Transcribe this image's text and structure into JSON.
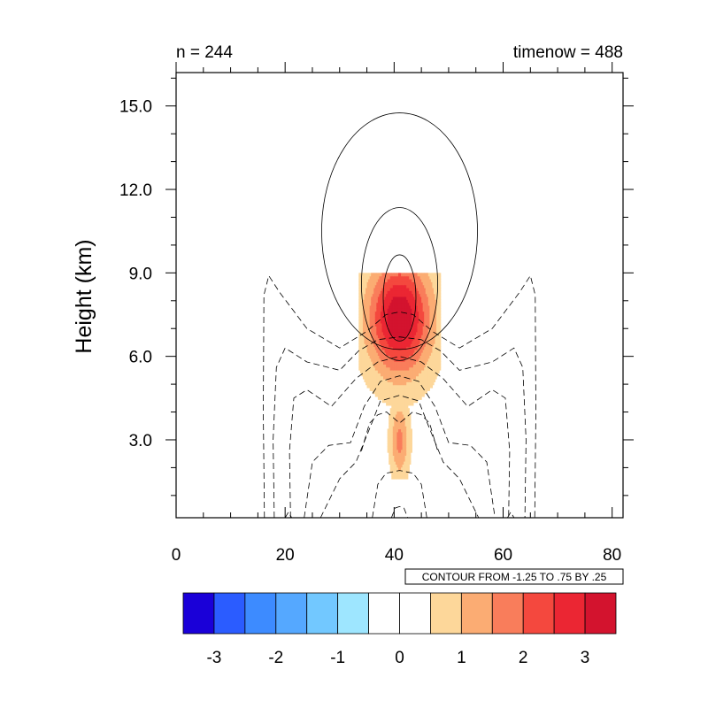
{
  "header": {
    "left_label": "n = 244",
    "right_label": "timenow = 488"
  },
  "contour_info": "CONTOUR FROM -1.25 TO .75 BY .25",
  "chart_data": {
    "type": "heatmap",
    "title": "",
    "xlabel": "",
    "ylabel": "Height (km)",
    "xlim": [
      0,
      82
    ],
    "ylim": [
      0.2,
      16.2
    ],
    "x_ticks": [
      0,
      20,
      40,
      60,
      80
    ],
    "x_tick_labels": [
      "0",
      "20",
      "40",
      "60",
      "80"
    ],
    "y_ticks": [
      3.0,
      6.0,
      9.0,
      12.0,
      15.0
    ],
    "y_tick_labels": [
      "3.0",
      "6.0",
      "9.0",
      "12.0",
      "15.0"
    ],
    "filled_field": {
      "center_x": 41,
      "peak_height_km": 7.4,
      "peak_value": 2.7,
      "x_extent": [
        33.5,
        48.5
      ],
      "height_extent_km": [
        1.6,
        8.6
      ]
    },
    "contour_lines": {
      "levels_from": -1.25,
      "levels_to": 0.75,
      "levels_step": 0.25,
      "positive": "solid",
      "negative": "dashed"
    },
    "colorbar": {
      "colors": [
        "#1a00d8",
        "#2b5cff",
        "#3d8bff",
        "#55a8ff",
        "#72c8ff",
        "#9ee6ff",
        "#ffffff",
        "#ffffff",
        "#fdd79a",
        "#fbac73",
        "#f97d5b",
        "#f4483e",
        "#eb2633",
        "#d3132e"
      ],
      "tick_values": [
        -3,
        -2,
        -1,
        0,
        1,
        2,
        3
      ],
      "tick_labels": [
        "-3",
        "-2",
        "-1",
        "0",
        "1",
        "2",
        "3"
      ]
    }
  }
}
